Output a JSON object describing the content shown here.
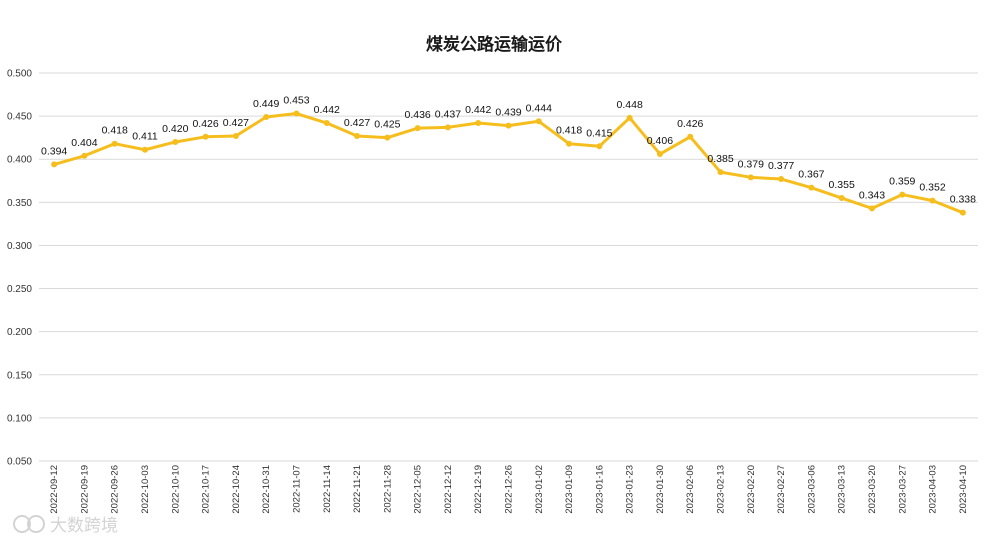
{
  "chart_data": {
    "type": "line",
    "title": "煤炭公路运输运价",
    "xlabel": "",
    "ylabel": "",
    "ylim": [
      0.05,
      0.5
    ],
    "yticks": [
      "0.050",
      "0.100",
      "0.150",
      "0.200",
      "0.250",
      "0.300",
      "0.350",
      "0.400",
      "0.450",
      "0.500"
    ],
    "grid": true,
    "legend": "none",
    "line_color": "#F5BE1C",
    "categories": [
      "2022-09-12",
      "2022-09-19",
      "2022-09-26",
      "2022-10-03",
      "2022-10-10",
      "2022-10-17",
      "2022-10-24",
      "2022-10-31",
      "2022-11-07",
      "2022-11-14",
      "2022-11-21",
      "2022-11-28",
      "2022-12-05",
      "2022-12-12",
      "2022-12-19",
      "2022-12-26",
      "2023-01-02",
      "2023-01-09",
      "2023-01-16",
      "2023-01-23",
      "2023-01-30",
      "2023-02-06",
      "2023-02-13",
      "2023-02-20",
      "2023-02-27",
      "2023-03-06",
      "2023-03-13",
      "2023-03-20",
      "2023-03-27",
      "2023-04-03",
      "2023-04-10"
    ],
    "series": [
      {
        "values": [
          0.394,
          0.404,
          0.418,
          0.411,
          0.42,
          0.426,
          0.427,
          0.449,
          0.453,
          0.442,
          0.427,
          0.425,
          0.436,
          0.437,
          0.442,
          0.439,
          0.444,
          0.418,
          0.415,
          0.448,
          0.406,
          0.426,
          0.385,
          0.379,
          0.377,
          0.367,
          0.355,
          0.343,
          0.359,
          0.352,
          0.338
        ],
        "labels": [
          "0.394",
          "0.404",
          "0.418",
          "0.411",
          "0.420",
          "0.426",
          "0.427",
          "0.449",
          "0.453",
          "0.442",
          "0.427",
          "0.425",
          "0.436",
          "0.437",
          "0.442",
          "0.439",
          "0.444",
          "0.418",
          "0.415",
          "0.448",
          "0.406",
          "0.426",
          "0.385",
          "0.379",
          "0.377",
          "0.367",
          "0.355",
          "0.343",
          "0.359",
          "0.352",
          "0.338"
        ]
      }
    ]
  },
  "watermark": {
    "text": "大数跨境",
    "icon": "logo-icon"
  }
}
